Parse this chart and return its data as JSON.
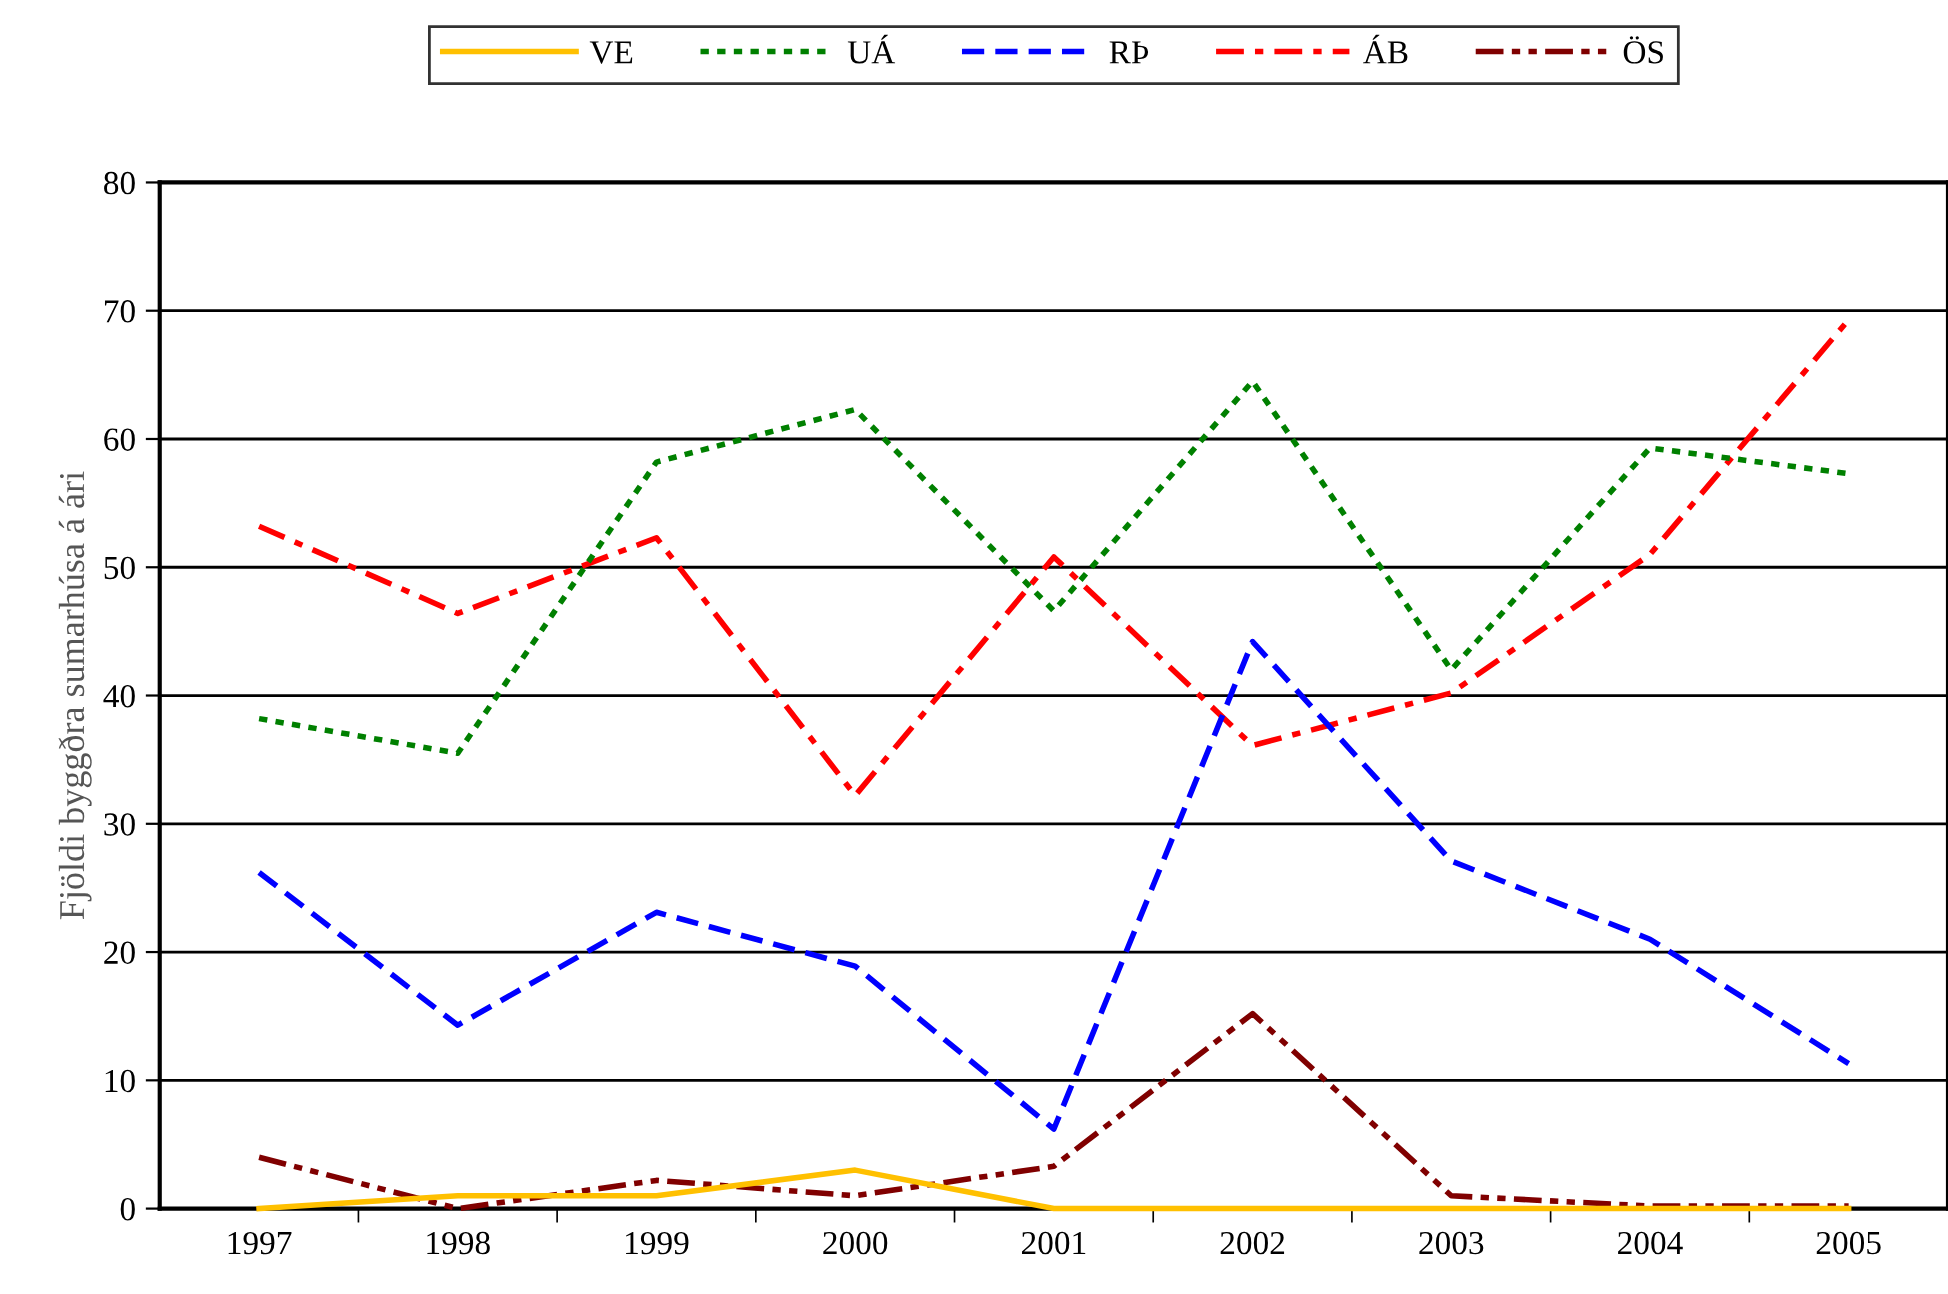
{
  "chart_data": {
    "type": "line",
    "ylabel": "Fjöldi byggðra sumarhúsa á ári",
    "categories": [
      "1997",
      "1998",
      "1999",
      "2000",
      "2001",
      "2002",
      "2003",
      "2004",
      "2005"
    ],
    "series": [
      {
        "name": "VE",
        "color": "#ffc000",
        "line_style": "solid",
        "values": [
          0,
          1,
          1,
          3,
          0,
          0,
          0,
          0,
          0
        ]
      },
      {
        "name": "UÁ",
        "color": "#008000",
        "line_style": "dotted",
        "values": [
          38.2,
          35.5,
          58.2,
          62.3,
          46.6,
          64.5,
          42,
          59.3,
          57.3
        ]
      },
      {
        "name": "RÞ",
        "color": "#0000ff",
        "line_style": "dashed",
        "values": [
          26.2,
          14.3,
          23.1,
          18.9,
          6.2,
          44.2,
          27.1,
          21,
          11.3
        ]
      },
      {
        "name": "ÁB",
        "color": "#ff0000",
        "line_style": "dashdot",
        "values": [
          53.2,
          46.4,
          52.3,
          32.2,
          50.8,
          36.1,
          40.2,
          51,
          69.3
        ]
      },
      {
        "name": "ÖS",
        "color": "#800000",
        "line_style": "dashdotdot",
        "values": [
          4,
          0,
          2.2,
          1,
          3.3,
          15.2,
          1,
          0.2,
          0.2
        ]
      }
    ],
    "ylim": [
      0,
      80
    ],
    "yticks": [
      0,
      10,
      20,
      30,
      40,
      50,
      60,
      70,
      80
    ],
    "grid": "y",
    "legend": "top",
    "marker": "none"
  }
}
